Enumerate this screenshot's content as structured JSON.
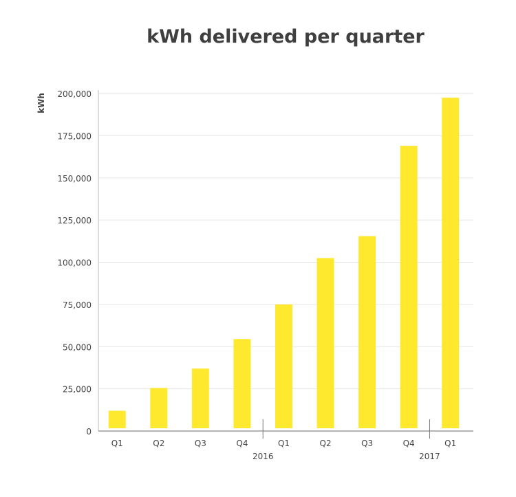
{
  "chart_data": {
    "type": "bar",
    "title": "kWh delivered per quarter",
    "xlabel": "",
    "ylabel": "kWh",
    "ylim": [
      0,
      200000
    ],
    "yticks": [
      0,
      25000,
      50000,
      75000,
      100000,
      125000,
      150000,
      175000,
      200000
    ],
    "ytick_labels": [
      "0",
      "25,000",
      "50,000",
      "75,000",
      "100,000",
      "125,000",
      "150,000",
      "175,000",
      "200,000"
    ],
    "categories": [
      "Q1",
      "Q2",
      "Q3",
      "Q4",
      "Q1",
      "Q2",
      "Q3",
      "Q4",
      "Q1"
    ],
    "groups": [
      {
        "label": "2016",
        "after_index": 3
      },
      {
        "label": "2017",
        "after_index": 7
      }
    ],
    "values": [
      12000,
      25500,
      37000,
      54500,
      75000,
      102500,
      115500,
      169000,
      197500
    ],
    "grid": true,
    "bar_color": "#ffe92e"
  }
}
